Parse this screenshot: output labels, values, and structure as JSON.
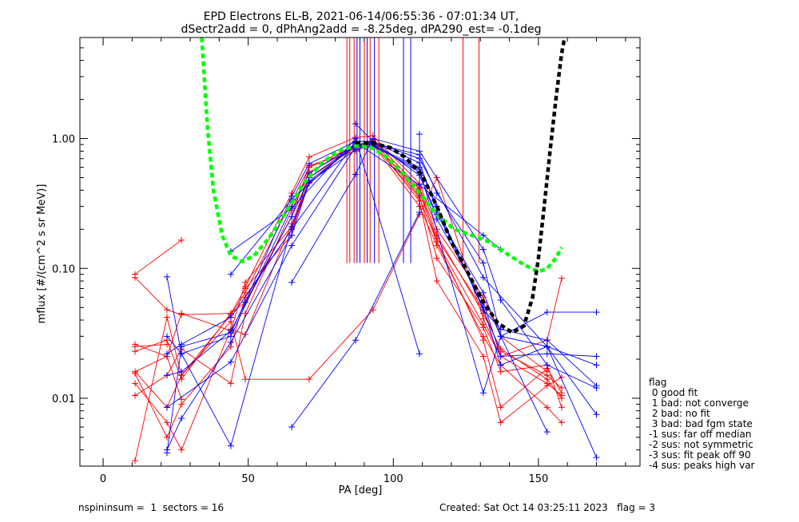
{
  "header": {
    "title_line1": "EPD Electrons EL-B, 2021-06-14/06:55:36 - 07:01:34 UT,",
    "title_line2": "dSectr2add = 0, dPhAng2add = -8.25deg, dPA290_est=  -0.1deg"
  },
  "footer": {
    "left": "nspininsum =  1  sectors = 16",
    "right": "Created: Sat Oct 14 03:25:11 2023   flag = 3"
  },
  "legend": {
    "title": "flag",
    "items": [
      " 0 good fit",
      " 1 bad: not converge",
      " 2 bad: no fit",
      " 3 bad: bad fgm state",
      "-1 sus: far off median",
      "-2 sus: not symmetric",
      "-3 sus: fit peak off 90",
      "-4 sus: peaks high var"
    ]
  },
  "chart_data": {
    "type": "line",
    "xlabel": "PA [deg]",
    "ylabel": "mflux [#/(cm^2 s sr MeV)]",
    "xlim": [
      -8,
      185
    ],
    "ylim": [
      0.003,
      6.0
    ],
    "yscale": "log",
    "xticks": [
      0,
      50,
      100,
      150
    ],
    "xtick_labels": [
      "0",
      "50",
      "100",
      "150"
    ],
    "yticks": [
      0.01,
      0.1,
      1.0
    ],
    "ytick_labels": [
      "0.01",
      "0.10",
      "1.00"
    ],
    "colors": {
      "red": "#ff0000",
      "blue": "#0000ff",
      "green": "#00ff00",
      "black": "#000000",
      "axes": "#000000"
    },
    "red_series": [
      [
        [
          11,
          0.016
        ],
        [
          22,
          0.0085
        ],
        [
          27,
          0.015
        ],
        [
          44,
          0.044
        ],
        [
          49,
          0.065
        ],
        [
          65,
          0.33
        ],
        [
          71,
          0.6
        ],
        [
          87,
          0.87
        ],
        [
          93,
          0.95
        ],
        [
          109,
          0.38
        ],
        [
          115,
          0.17
        ],
        [
          131,
          0.048
        ],
        [
          137,
          0.023
        ],
        [
          153,
          0.015
        ],
        [
          158,
          0.012
        ]
      ],
      [
        [
          11,
          0.026
        ],
        [
          22,
          0.021
        ],
        [
          27,
          0.045
        ],
        [
          44,
          0.033
        ],
        [
          49,
          0.078
        ],
        [
          65,
          0.21
        ],
        [
          71,
          0.45
        ],
        [
          87,
          0.92
        ],
        [
          93,
          0.88
        ],
        [
          109,
          0.41
        ],
        [
          115,
          0.16
        ],
        [
          131,
          0.037
        ],
        [
          137,
          0.021
        ],
        [
          153,
          0.013
        ],
        [
          158,
          0.0105
        ]
      ],
      [
        [
          11,
          0.085
        ],
        [
          22,
          0.048
        ],
        [
          27,
          0.044
        ],
        [
          44,
          0.045
        ],
        [
          49,
          0.055
        ],
        [
          65,
          0.25
        ],
        [
          71,
          0.62
        ],
        [
          87,
          0.8
        ],
        [
          93,
          0.98
        ],
        [
          109,
          0.42
        ],
        [
          115,
          0.18
        ],
        [
          131,
          0.045
        ],
        [
          137,
          0.024
        ],
        [
          153,
          0.014
        ],
        [
          158,
          0.01
        ]
      ],
      [
        [
          11,
          0.0105
        ],
        [
          22,
          0.015
        ],
        [
          27,
          0.024
        ],
        [
          44,
          0.013
        ],
        [
          49,
          0.045
        ],
        [
          65,
          0.28
        ],
        [
          71,
          0.55
        ],
        [
          87,
          0.86
        ],
        [
          93,
          0.9
        ],
        [
          109,
          0.3
        ],
        [
          115,
          0.15
        ],
        [
          131,
          0.03
        ],
        [
          137,
          0.018
        ],
        [
          153,
          0.0085
        ],
        [
          158,
          0.0065
        ]
      ],
      [
        [
          11,
          0.013
        ],
        [
          22,
          0.0065
        ],
        [
          27,
          0.004
        ],
        [
          44,
          0.034
        ],
        [
          49,
          0.031
        ],
        [
          65,
          0.22
        ],
        [
          71,
          0.5
        ],
        [
          87,
          0.85
        ],
        [
          93,
          0.97
        ],
        [
          109,
          0.36
        ],
        [
          115,
          0.12
        ],
        [
          131,
          0.035
        ],
        [
          137,
          0.016
        ],
        [
          153,
          0.018
        ],
        [
          158,
          0.0085
        ]
      ],
      [
        [
          11,
          0.0155
        ],
        [
          22,
          0.005
        ],
        [
          27,
          0.009
        ],
        [
          44,
          0.025
        ],
        [
          49,
          0.06
        ],
        [
          65,
          0.2
        ],
        [
          71,
          0.45
        ],
        [
          87,
          0.9
        ],
        [
          93,
          0.93
        ],
        [
          109,
          0.33
        ],
        [
          115,
          0.08
        ],
        [
          131,
          0.021
        ],
        [
          137,
          0.0065
        ],
        [
          153,
          0.0125
        ],
        [
          158,
          0.0145
        ]
      ],
      [
        [
          11,
          0.023
        ],
        [
          22,
          0.028
        ],
        [
          27,
          0.014
        ],
        [
          44,
          0.045
        ],
        [
          49,
          0.07
        ],
        [
          65,
          0.18
        ],
        [
          71,
          0.6
        ],
        [
          87,
          0.88
        ],
        [
          93,
          0.91
        ],
        [
          109,
          0.35
        ],
        [
          115,
          0.16
        ],
        [
          131,
          0.028
        ],
        [
          137,
          0.0085
        ],
        [
          153,
          0.017
        ],
        [
          158,
          0.011
        ]
      ],
      [
        [
          11,
          0.0033
        ],
        [
          22,
          0.042
        ],
        [
          27,
          0.015
        ],
        [
          44,
          0.039
        ],
        [
          49,
          0.014
        ],
        [
          71,
          0.014
        ],
        [
          93,
          0.048
        ],
        [
          109,
          0.26
        ],
        [
          115,
          0.5
        ],
        [
          131,
          0.041
        ],
        [
          137,
          0.021
        ],
        [
          153,
          0.028
        ],
        [
          158,
          0.084
        ]
      ],
      [
        [
          11,
          0.09
        ],
        [
          27,
          0.165
        ]
      ],
      [
        [
          11,
          0.025
        ],
        [
          22,
          0.026
        ]
      ],
      [
        [
          11,
          0.016
        ],
        [
          22,
          0.021
        ],
        [
          27,
          0.0098
        ]
      ],
      [
        [
          49,
          0.072
        ],
        [
          65,
          0.38
        ],
        [
          71,
          0.72
        ],
        [
          87,
          1.02
        ],
        [
          93,
          1.05
        ],
        [
          109,
          0.45
        ],
        [
          115,
          0.2
        ],
        [
          131,
          0.06
        ],
        [
          137,
          0.03
        ],
        [
          153,
          0.016
        ]
      ]
    ],
    "blue_series": [
      [
        [
          22,
          0.086
        ],
        [
          27,
          0.022
        ],
        [
          44,
          0.0043
        ],
        [
          65,
          0.21
        ],
        [
          71,
          0.47
        ],
        [
          87,
          0.88
        ],
        [
          93,
          0.92
        ],
        [
          109,
          0.75
        ],
        [
          115,
          0.38
        ],
        [
          131,
          0.11
        ],
        [
          137,
          0.03
        ],
        [
          153,
          0.046
        ],
        [
          170,
          0.046
        ]
      ],
      [
        [
          22,
          0.0038
        ],
        [
          27,
          0.025
        ],
        [
          44,
          0.032
        ],
        [
          49,
          0.055
        ],
        [
          65,
          0.36
        ],
        [
          71,
          0.64
        ],
        [
          87,
          0.95
        ],
        [
          93,
          0.95
        ],
        [
          109,
          0.52
        ],
        [
          115,
          0.26
        ],
        [
          131,
          0.065
        ],
        [
          137,
          0.03
        ],
        [
          153,
          0.025
        ],
        [
          170,
          0.0035
        ]
      ],
      [
        [
          22,
          0.004
        ],
        [
          27,
          0.007
        ],
        [
          44,
          0.027
        ],
        [
          65,
          0.18
        ],
        [
          71,
          0.46
        ],
        [
          87,
          0.82
        ],
        [
          93,
          0.88
        ],
        [
          109,
          0.6
        ],
        [
          115,
          0.3
        ],
        [
          131,
          0.048
        ],
        [
          137,
          0.034
        ],
        [
          153,
          0.028
        ],
        [
          170,
          0.0125
        ]
      ],
      [
        [
          22,
          0.015
        ],
        [
          27,
          0.016
        ],
        [
          44,
          0.033
        ],
        [
          65,
          0.25
        ],
        [
          71,
          0.5
        ],
        [
          87,
          0.89
        ],
        [
          93,
          0.9
        ],
        [
          109,
          0.55
        ],
        [
          115,
          0.24
        ],
        [
          131,
          0.055
        ],
        [
          137,
          0.021
        ],
        [
          153,
          0.022
        ],
        [
          170,
          0.021
        ]
      ],
      [
        [
          22,
          0.022
        ],
        [
          27,
          0.026
        ],
        [
          44,
          0.042
        ],
        [
          65,
          0.2
        ],
        [
          87,
          0.95
        ],
        [
          93,
          0.95
        ],
        [
          109,
          0.7
        ],
        [
          131,
          0.085
        ],
        [
          153,
          0.025
        ],
        [
          170,
          0.018
        ]
      ],
      [
        [
          22,
          0.03
        ],
        [
          27,
          0.022
        ],
        [
          44,
          0.03
        ],
        [
          65,
          0.3
        ],
        [
          71,
          0.54
        ],
        [
          87,
          0.9
        ],
        [
          93,
          0.94
        ],
        [
          109,
          0.65
        ],
        [
          115,
          0.28
        ],
        [
          131,
          0.05
        ],
        [
          137,
          0.018
        ],
        [
          153,
          0.025
        ],
        [
          170,
          0.0075
        ]
      ],
      [
        [
          22,
          0.0085
        ],
        [
          44,
          0.019
        ],
        [
          65,
          0.15
        ],
        [
          87,
          0.86
        ],
        [
          93,
          0.87
        ],
        [
          109,
          0.58
        ],
        [
          131,
          0.011
        ],
        [
          137,
          0.03
        ],
        [
          153,
          0.0055
        ]
      ],
      [
        [
          44,
          0.135
        ],
        [
          65,
          0.29
        ],
        [
          87,
          1.0
        ],
        [
          109,
          0.022
        ]
      ],
      [
        [
          44,
          0.09
        ],
        [
          65,
          0.34
        ],
        [
          87,
          0.93
        ],
        [
          109,
          0.44
        ],
        [
          131,
          0.18
        ],
        [
          137,
          0.14
        ]
      ],
      [
        [
          65,
          0.006
        ],
        [
          87,
          0.028
        ],
        [
          109,
          0.27
        ],
        [
          109,
          1.08
        ]
      ],
      [
        [
          65,
          0.078
        ],
        [
          87,
          0.53
        ],
        [
          93,
          1.0
        ],
        [
          109,
          0.8
        ],
        [
          131,
          0.14
        ],
        [
          137,
          0.057
        ],
        [
          153,
          0.018
        ],
        [
          170,
          0.012
        ]
      ],
      [
        [
          87,
          1.3
        ],
        [
          93,
          0.95
        ]
      ]
    ],
    "green_curve": [
      [
        34,
        6.0
      ],
      [
        36,
        1.2
      ],
      [
        38,
        0.4
      ],
      [
        41,
        0.18
      ],
      [
        44,
        0.125
      ],
      [
        48,
        0.113
      ],
      [
        52,
        0.125
      ],
      [
        57,
        0.17
      ],
      [
        63,
        0.27
      ],
      [
        69,
        0.45
      ],
      [
        75,
        0.64
      ],
      [
        81,
        0.8
      ],
      [
        87,
        0.88
      ],
      [
        92,
        0.86
      ],
      [
        97,
        0.74
      ],
      [
        103,
        0.55
      ],
      [
        109,
        0.38
      ],
      [
        115,
        0.26
      ],
      [
        121,
        0.2
      ],
      [
        127,
        0.18
      ],
      [
        133,
        0.16
      ],
      [
        139,
        0.13
      ],
      [
        145,
        0.107
      ],
      [
        150,
        0.094
      ],
      [
        153,
        0.1
      ],
      [
        156,
        0.12
      ],
      [
        158,
        0.145
      ]
    ],
    "black_curve": [
      [
        87,
        0.93
      ],
      [
        93,
        0.92
      ],
      [
        99,
        0.85
      ],
      [
        104,
        0.72
      ],
      [
        110,
        0.52
      ],
      [
        115,
        0.3
      ],
      [
        120,
        0.16
      ],
      [
        126,
        0.09
      ],
      [
        131,
        0.055
      ],
      [
        136,
        0.038
      ],
      [
        141,
        0.032
      ],
      [
        145,
        0.036
      ],
      [
        148,
        0.06
      ],
      [
        150,
        0.12
      ],
      [
        152,
        0.3
      ],
      [
        154,
        0.8
      ],
      [
        156,
        2.0
      ],
      [
        158,
        4.5
      ],
      [
        159,
        6.0
      ]
    ],
    "red_vlines": [
      84,
      85,
      86.5,
      90,
      92,
      95,
      124,
      129.5
    ],
    "blue_vlines": [
      87.5,
      88.5,
      91,
      93.5,
      103.5,
      106
    ],
    "vline_ylim": [
      0.11,
      6.0
    ]
  }
}
